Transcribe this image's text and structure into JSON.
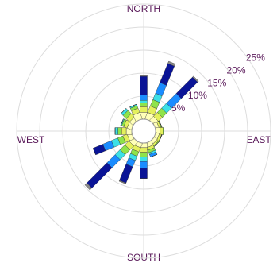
{
  "chart_data": {
    "type": "windrose",
    "direction_labels": [
      "NORTH",
      "EAST",
      "SOUTH",
      "WEST"
    ],
    "categories": [
      null,
      null,
      null,
      null,
      null,
      null,
      null,
      null,
      null,
      null,
      null,
      null,
      null,
      null,
      null,
      null
    ],
    "series": [
      {
        "color": "#ffffb8",
        "values": [
          1.5,
          1.5,
          1.2,
          0.8,
          1.0,
          0.8,
          0.8,
          1.0,
          1.0,
          1.0,
          1.2,
          1.0,
          1.2,
          1.0,
          1.0,
          1.5
        ]
      },
      {
        "color": "#e4f05c",
        "values": [
          1.2,
          1.5,
          1.2,
          0.4,
          0.6,
          0.5,
          0.4,
          0.6,
          1.0,
          1.0,
          1.2,
          1.0,
          1.0,
          0.8,
          1.0,
          1.0
        ]
      },
      {
        "color": "#8fe34a",
        "values": [
          0.8,
          1.5,
          1.3,
          0.2,
          0.2,
          0.1,
          0.2,
          0.6,
          1.0,
          1.0,
          1.5,
          1.2,
          0.8,
          0.5,
          1.0,
          0.6
        ]
      },
      {
        "color": "#3ce0e6",
        "values": [
          0.6,
          1.5,
          1.5,
          0,
          0,
          0,
          0,
          0.4,
          1.0,
          1.0,
          1.5,
          1.5,
          0.6,
          0.2,
          0.6,
          0.3
        ]
      },
      {
        "color": "#1a8cff",
        "values": [
          1.2,
          2.5,
          3.0,
          0,
          0,
          0,
          0,
          0.6,
          1.5,
          1.5,
          2.5,
          2.0,
          0,
          0,
          0,
          0
        ]
      },
      {
        "color": "#0a1496",
        "values": [
          4.0,
          4.5,
          5.0,
          0,
          0,
          0,
          0,
          0,
          2.2,
          3.8,
          6.2,
          2.3,
          0,
          0,
          0,
          0
        ]
      },
      {
        "color": "#8a8a8a",
        "values": [
          0.2,
          0.5,
          0.3,
          0,
          0,
          0,
          0,
          0,
          0,
          0.2,
          0.6,
          0,
          0,
          0,
          0,
          0
        ]
      }
    ],
    "rlim": [
      0,
      25
    ],
    "rticks": [
      {
        "value": 5,
        "label": "5%"
      },
      {
        "value": 10,
        "label": "10%"
      },
      {
        "value": 15,
        "label": "15%"
      },
      {
        "value": 20,
        "label": "20%"
      },
      {
        "value": 25,
        "label": "25%"
      }
    ],
    "grid": true
  }
}
